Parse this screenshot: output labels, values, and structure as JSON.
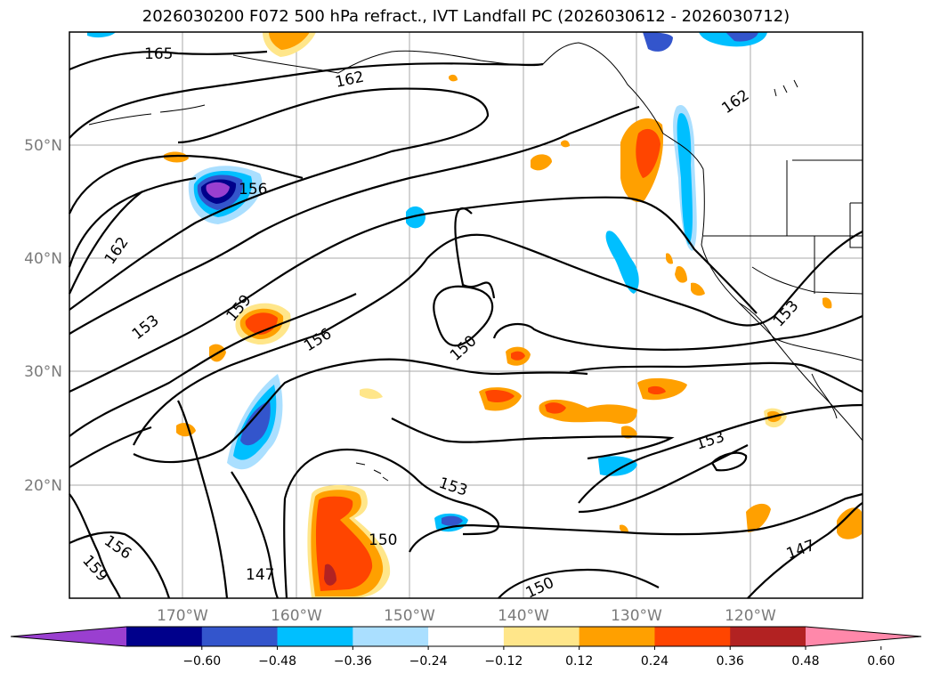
{
  "title": "2026030200 F072 500 hPa refract., IVT Landfall PC (2026030612 - 2026030712)",
  "latitude_labels": [
    "50°N",
    "40°N",
    "30°N",
    "20°N"
  ],
  "longitude_labels": [
    "170°W",
    "160°W",
    "150°W",
    "140°W",
    "130°W",
    "120°W"
  ],
  "contour_labels": [
    {
      "text": "165"
    },
    {
      "text": "162"
    },
    {
      "text": "162"
    },
    {
      "text": "156"
    },
    {
      "text": "162"
    },
    {
      "text": "159"
    },
    {
      "text": "153"
    },
    {
      "text": "156"
    },
    {
      "text": "150"
    },
    {
      "text": "153"
    },
    {
      "text": "153"
    },
    {
      "text": "153"
    },
    {
      "text": "156"
    },
    {
      "text": "159"
    },
    {
      "text": "147"
    },
    {
      "text": "150"
    },
    {
      "text": "150"
    },
    {
      "text": "147"
    }
  ],
  "colorbar": {
    "tick_labels": [
      "−0.60",
      "−0.48",
      "−0.36",
      "−0.24",
      "−0.12",
      "0.12",
      "0.24",
      "0.36",
      "0.48",
      "0.60"
    ],
    "colors": [
      "#9a3fd0",
      "#00008b",
      "#3355cc",
      "#00bfff",
      "#aadfff",
      "#ffffff",
      "#ffe68a",
      "#ffa000",
      "#ff4500",
      "#b22222",
      "#ff88aa"
    ]
  },
  "colors": {
    "land_outline": "#000000",
    "grid": "#aaaaaa",
    "contour": "#000000"
  }
}
